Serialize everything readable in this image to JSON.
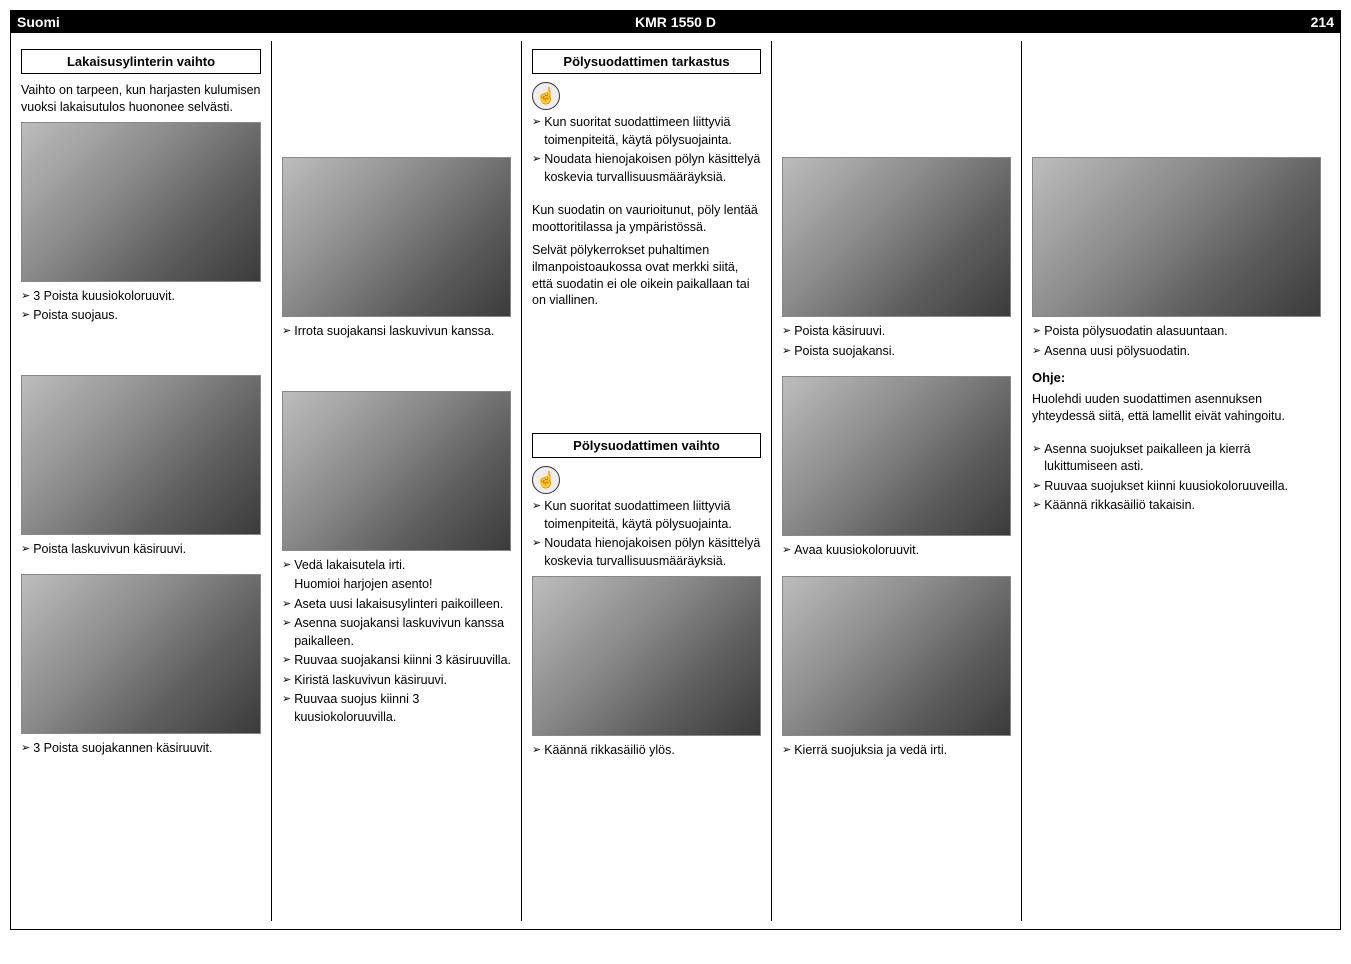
{
  "header": {
    "language": "Suomi",
    "model": "KMR 1550 D",
    "page": "214"
  },
  "col1": {
    "section1": {
      "title": "Lakaisusylinterin vaihto"
    },
    "intro": "Vaihto on tarpeen, kun harjasten kulumisen vuoksi lakaisutulos huononee selvästi.",
    "caps1": [
      "3 Poista kuusiokoloruuvit.",
      "Poista suojaus."
    ],
    "caps2": [
      "Poista laskuvivun käsiruuvi."
    ],
    "caps3": [
      "3 Poista suojakannen käsiruuvit."
    ]
  },
  "col2": {
    "caps1": [
      "Irrota suojakansi laskuvivun kanssa."
    ],
    "caps2": [
      "Vedä lakaisutela irti.",
      "Huomioi harjojen asento!",
      "Aseta uusi lakaisusylinteri paikoilleen.",
      "Asenna suojakansi laskuvivun kanssa paikalleen.",
      "Ruuvaa suojakansi kiinni 3 käsiruuvilla.",
      "Kiristä laskuvivun käsiruuvi.",
      "Ruuvaa suojus kiinni 3 kuusiokoloruuvilla."
    ],
    "caps2_noarrow_idx": [
      1
    ]
  },
  "col3": {
    "section1": {
      "title": "Pölysuodattimen tarkastus"
    },
    "bullets1": [
      "Kun suoritat suodattimeen liittyviä toimenpiteitä, käytä pölysuojainta.",
      "Noudata hienojakoisen pölyn käsittelyä koskevia turvallisuusmääräyksiä."
    ],
    "para1": "Kun suodatin on vaurioitunut, pöly lentää moottoritilassa ja ympäristössä.",
    "para2": "Selvät pölykerrokset puhaltimen ilmanpoistoaukossa ovat merkki siitä, että suodatin ei ole oikein paikallaan tai on viallinen.",
    "section2": {
      "title": "Pölysuodattimen vaihto"
    },
    "bullets2": [
      "Kun suoritat suodattimeen liittyviä toimenpiteitä, käytä pölysuojainta.",
      "Noudata hienojakoisen pölyn käsittelyä koskevia turvallisuusmääräyksiä."
    ],
    "caps1": [
      "Käännä rikkasäiliö ylös."
    ]
  },
  "col4": {
    "caps1": [
      "Poista käsiruuvi.",
      "Poista suojakansi."
    ],
    "caps2": [
      "Avaa kuusiokoloruuvit."
    ],
    "caps3": [
      "Kierrä suojuksia ja vedä irti."
    ]
  },
  "col5": {
    "caps1": [
      "Poista pölysuodatin alasuuntaan.",
      "Asenna uusi pölysuodatin."
    ],
    "note_title": "Ohje:",
    "note_body": "Huolehdi uuden suodattimen asennuksen yhteydessä siitä, että lamellit eivät vahingoitu.",
    "bullets1": [
      "Asenna suojukset paikalleen ja kierrä lukittumiseen asti.",
      "Ruuvaa suojukset kiinni kuusiokoloruuveilla.",
      "Käännä rikkasäiliö takaisin."
    ]
  },
  "icons": {
    "hint": "☝"
  },
  "arrow": "➢"
}
